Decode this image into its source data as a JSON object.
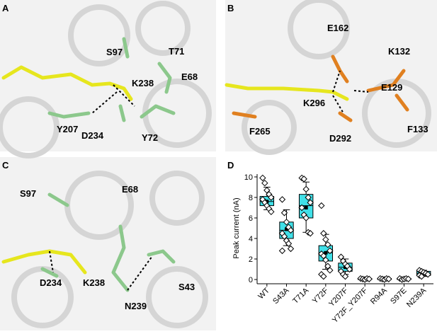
{
  "panels": [
    {
      "letter": "A",
      "labels": [
        "S97",
        "T71",
        "K238",
        "E68",
        "Y207",
        "D234",
        "Y72"
      ]
    },
    {
      "letter": "B",
      "labels": [
        "E162",
        "K132",
        "K296",
        "E129",
        "F265",
        "D292",
        "F133"
      ]
    },
    {
      "letter": "C",
      "labels": [
        "S97",
        "E68",
        "S43",
        "D234",
        "K238",
        "N239"
      ]
    }
  ],
  "chart_data": {
    "letter": "D",
    "type": "box",
    "y_label": "Peak current (nA)",
    "categories": [
      "WT",
      "S43A",
      "T71A",
      "Y72F",
      "Y207F",
      "Y72F_Y207F",
      "R94A",
      "S97E",
      "N239A"
    ],
    "color": "#40e0e8",
    "whisker_low": [
      6.8,
      3.3,
      4.6,
      1.0,
      0.5,
      0,
      0,
      0,
      0.3
    ],
    "q1": [
      7.2,
      4.0,
      6.0,
      1.8,
      0.8,
      0,
      0,
      0,
      0.4
    ],
    "median": [
      7.6,
      4.8,
      7.2,
      2.6,
      1.2,
      0.05,
      0.05,
      0.05,
      0.6
    ],
    "q3": [
      8.1,
      5.6,
      8.3,
      3.3,
      1.6,
      0.1,
      0.1,
      0.1,
      0.8
    ],
    "whisker_high": [
      9.0,
      6.8,
      9.5,
      4.4,
      2.0,
      0.15,
      0.15,
      0.15,
      0.9
    ],
    "mean": [
      7.6,
      4.9,
      7.0,
      2.6,
      1.2,
      0.05,
      0.05,
      0.05,
      0.6
    ],
    "points": [
      [
        9.9,
        9.4,
        8.7,
        8.3,
        8.0,
        7.8,
        7.5,
        7.2,
        6.9,
        6.6
      ],
      [
        7.8,
        6.5,
        5.6,
        5.1,
        4.8,
        4.5,
        4.2,
        3.8,
        3.5,
        3.0,
        2.8
      ],
      [
        9.9,
        9.8,
        8.8,
        8.0,
        7.5,
        7.0,
        6.3,
        6.0,
        4.6,
        4.5
      ],
      [
        7.2,
        4.5,
        3.9,
        3.4,
        2.8,
        2.5,
        2.3,
        1.9,
        1.3,
        0.9,
        0.5,
        0.3
      ],
      [
        2.2,
        1.8,
        1.5,
        1.3,
        1.0,
        0.8,
        0.5,
        0.3
      ],
      [
        0.1,
        0.05,
        0,
        0.1,
        0.05
      ],
      [
        0.1,
        0.05,
        0,
        0.1,
        0.05
      ],
      [
        0.1,
        0,
        0.05,
        0.1,
        0.05
      ],
      [
        0.9,
        0.8,
        0.7,
        0.6,
        0.5,
        0.4,
        0.3
      ]
    ],
    "ylim": [
      0,
      10
    ],
    "yticks": [
      0,
      2,
      4,
      6,
      8,
      10
    ]
  }
}
